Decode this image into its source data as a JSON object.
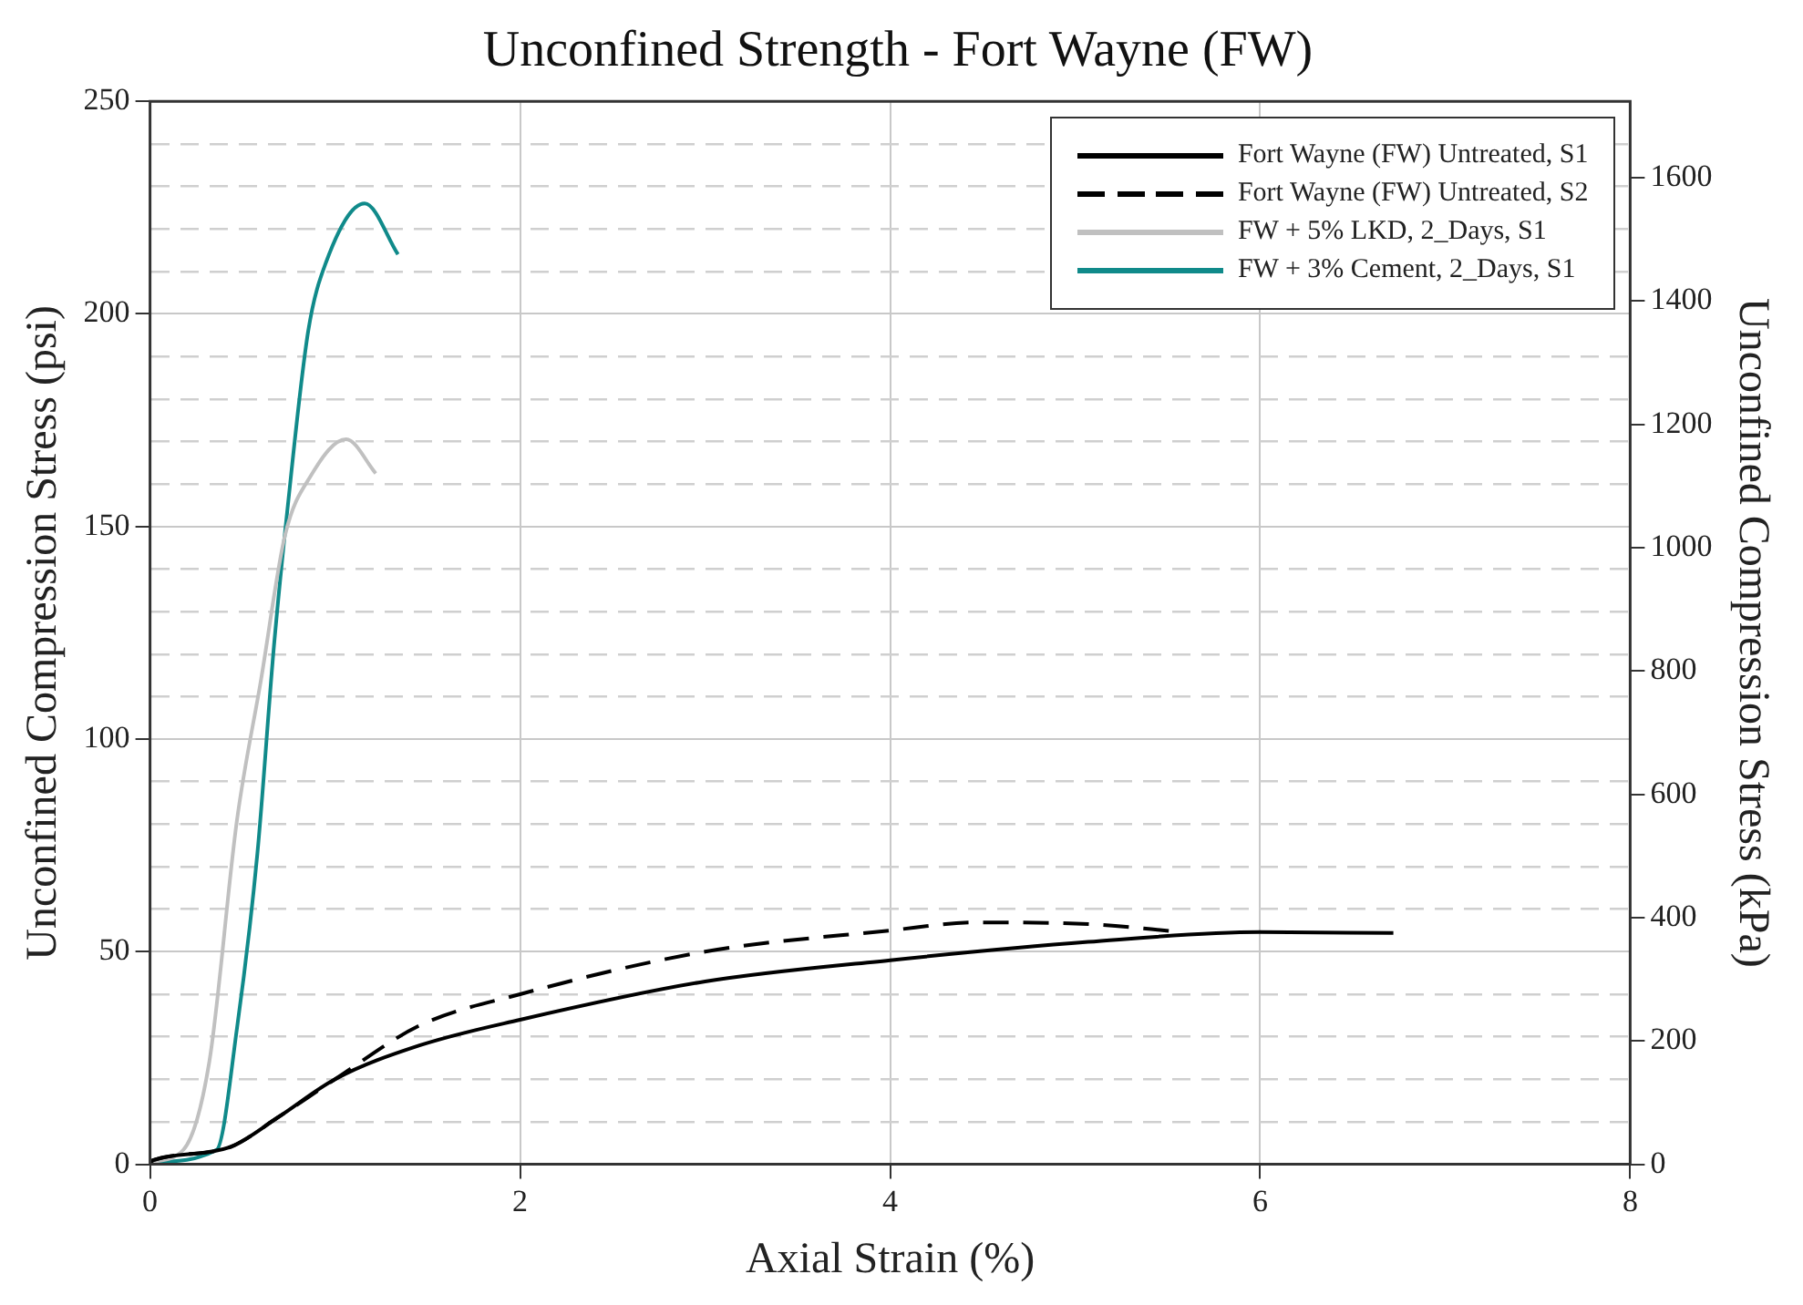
{
  "chart_data": {
    "type": "line",
    "title": "Unconfined Strength - Fort Wayne (FW)",
    "xlabel": "Axial Strain (%)",
    "ylabel": "Unconfined Compression Stress (psi)",
    "y2label": "Unconfined Compression Stress (kPa)",
    "xlim": [
      0,
      8
    ],
    "xticks": [
      0,
      2,
      4,
      6,
      8
    ],
    "ylim": [
      0,
      250
    ],
    "yticks": [
      0,
      {
        "value": 10,
        "label": null
      },
      {
        "value": 20,
        "label": null
      },
      {
        "value": 30,
        "label": null
      },
      {
        "value": 40,
        "label": null
      },
      50,
      {
        "value": 60,
        "label": null
      },
      {
        "value": 70,
        "label": null
      },
      {
        "value": 80,
        "label": null
      },
      {
        "value": 90,
        "label": null
      },
      100,
      {
        "value": 110,
        "label": null
      },
      {
        "value": 120,
        "label": null
      },
      {
        "value": 130,
        "label": null
      },
      {
        "value": 140,
        "label": null
      },
      150,
      {
        "value": 160,
        "label": null
      },
      {
        "value": 170,
        "label": null
      },
      {
        "value": 180,
        "label": null
      },
      {
        "value": 190,
        "label": null
      },
      200,
      {
        "value": 210,
        "label": null
      },
      {
        "value": 220,
        "label": null
      },
      {
        "value": 230,
        "label": null
      },
      {
        "value": 240,
        "label": null
      },
      250
    ],
    "y2lim": [
      0,
      1723.7
    ],
    "y2ticks": [
      0,
      200,
      400,
      600,
      800,
      1000,
      1200,
      1400,
      1600
    ],
    "grid": true,
    "legend": "top right",
    "marker": "none",
    "series": [
      {
        "name": "Fort Wayne (FW) Untreated, S1",
        "color": "#000000",
        "line_style": "solid",
        "x": [
          0,
          0.02,
          0.43,
          0.69,
          1.0,
          1.46,
          2.0,
          3.0,
          4.0,
          5.07,
          6.0,
          6.72
        ],
        "values": [
          0.5,
          1,
          4,
          11,
          20,
          28,
          34,
          43,
          48,
          52.3,
          54.6,
          54.4
        ]
      },
      {
        "name": "Fort Wayne (FW) Untreated, S2",
        "color": "#000000",
        "line_style": "dashed",
        "x": [
          0,
          0.02,
          0.43,
          0.69,
          1.0,
          1.46,
          2.0,
          3.0,
          4.0,
          4.47,
          5.07,
          5.58
        ],
        "values": [
          0.5,
          1,
          4,
          11,
          20,
          32.7,
          40,
          50,
          55,
          56.9,
          56.5,
          54.6
        ]
      },
      {
        "name": "FW + 5% LKD, 2_Days, S1",
        "color": "#c0c0c0",
        "line_style": "solid",
        "x": [
          0,
          0.18,
          0.32,
          0.47,
          0.6,
          0.73,
          0.87,
          1.06,
          1.22
        ],
        "values": [
          0.5,
          3.4,
          24,
          81,
          114,
          148,
          162,
          170.5,
          162.5
        ]
      },
      {
        "name": "FW + 3% Cement, 2_Days, S1",
        "color": "#108a8a",
        "line_style": "solid",
        "x": [
          0,
          0.36,
          0.47,
          0.58,
          0.67,
          0.745,
          0.855,
          0.95,
          1.16,
          1.34
        ],
        "values": [
          0.5,
          3.4,
          32,
          73,
          122,
          155,
          196,
          212,
          226,
          214
        ]
      }
    ]
  }
}
